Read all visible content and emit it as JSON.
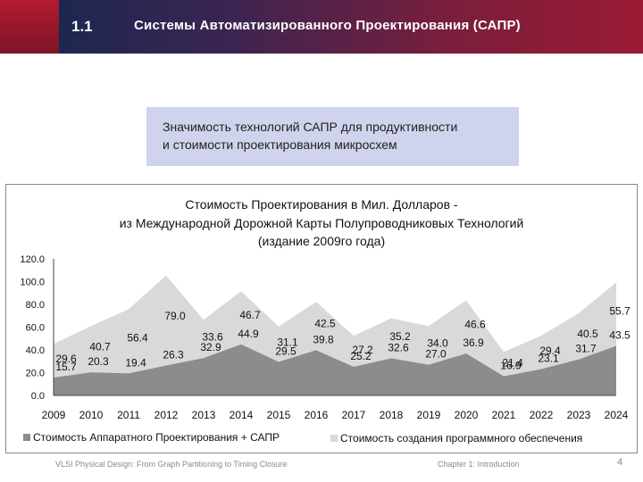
{
  "header": {
    "section_number": "1.1",
    "title": "Системы Автоматизированного Проектирования (САПР)"
  },
  "subtitle": {
    "line1": "Значимость технологий САПР для продуктивности",
    "line2": "и стоимости проектирования микросхем"
  },
  "chart_data": {
    "type": "area",
    "title_lines": [
      "Стоимость Проектирования в Мил. Долларов -",
      "из Международной Дорожной Карты Полупроводниковых Технологий",
      "(издание 2009го года)"
    ],
    "x": [
      "2009",
      "2010",
      "2011",
      "2012",
      "2013",
      "2014",
      "2015",
      "2016",
      "2017",
      "2018",
      "2019",
      "2020",
      "2021",
      "2022",
      "2023",
      "2024"
    ],
    "ylim": [
      0,
      120
    ],
    "yticks": [
      "0.0",
      "20.0",
      "40.0",
      "60.0",
      "80.0",
      "100.0",
      "120.0"
    ],
    "series": [
      {
        "name": "Стоимость Аппаратного Проектирования + САПР",
        "color": "#8c8c8c",
        "values": [
          15.7,
          20.3,
          19.4,
          26.3,
          32.9,
          44.9,
          29.5,
          39.8,
          25.2,
          32.6,
          27.0,
          36.9,
          16.9,
          23.1,
          31.7,
          43.5
        ]
      },
      {
        "name": "Стоимость создания программного обеспечения",
        "color": "#d9d9d9",
        "values": [
          29.6,
          40.7,
          56.4,
          79.0,
          33.6,
          46.7,
          31.1,
          42.5,
          27.2,
          35.2,
          34.0,
          46.6,
          21.4,
          29.4,
          40.5,
          55.7
        ]
      }
    ],
    "stacked": true,
    "grid": false,
    "legend_position": "bottom"
  },
  "footer": {
    "left": "VLSI Physical Design: From Graph Partitioning to Timing Closure",
    "right": "Chapter 1: Introduction",
    "page": "4"
  }
}
